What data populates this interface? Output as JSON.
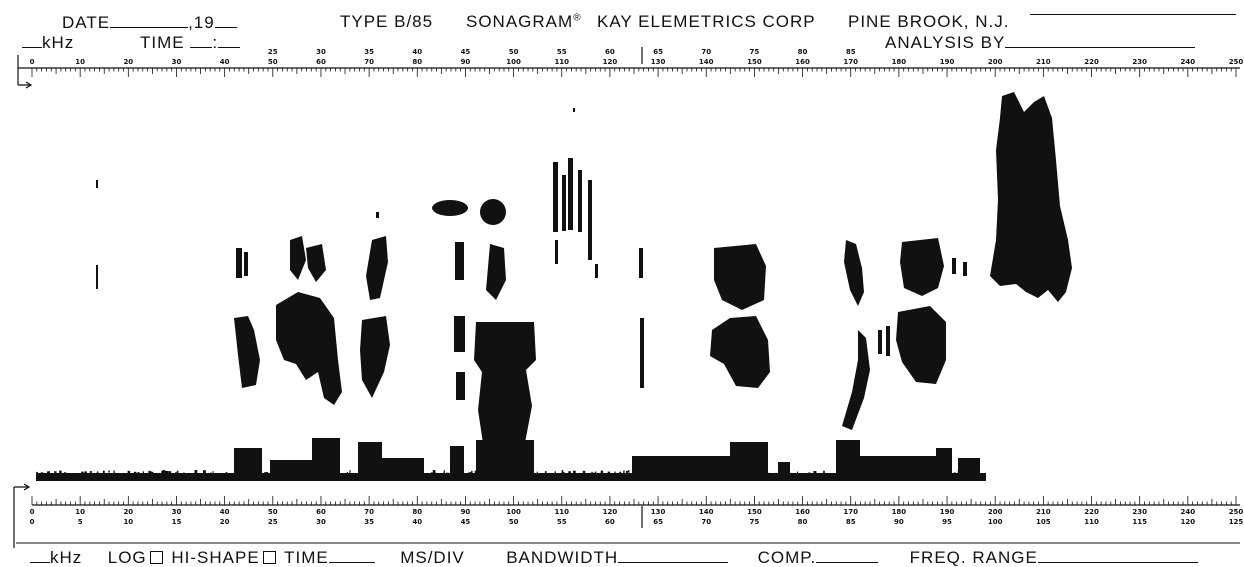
{
  "header": {
    "date_label": "DATE",
    "year_label": ",19",
    "khz_label": "kHz",
    "time_label": "TIME",
    "time_colon": ":",
    "type_label": "TYPE B/85",
    "brand": "SONAGRAM",
    "brand_mark": "®",
    "maker": "KAY ELEMETRICS CORP",
    "location": "PINE BROOK, N.J.",
    "analysis_label": "ANALYSIS BY"
  },
  "top_scale": {
    "main": [
      "0",
      "10",
      "20",
      "30",
      "40",
      "50",
      "60",
      "70",
      "80",
      "90",
      "100",
      "110",
      "120",
      "130",
      "140",
      "150",
      "160",
      "170",
      "180",
      "190",
      "200",
      "210",
      "220",
      "230",
      "240",
      "250"
    ],
    "secondary": [
      "25",
      "30",
      "35",
      "40",
      "45",
      "50",
      "55",
      "60",
      "65",
      "70",
      "75",
      "80",
      "85"
    ]
  },
  "bottom_scale": {
    "main": [
      "0",
      "10",
      "20",
      "30",
      "40",
      "50",
      "60",
      "70",
      "80",
      "90",
      "100",
      "110",
      "120",
      "130",
      "140",
      "150",
      "160",
      "170",
      "180",
      "190",
      "200",
      "210",
      "220",
      "230",
      "240",
      "250"
    ],
    "half": [
      "0",
      "5",
      "10",
      "15",
      "20",
      "25",
      "30",
      "35",
      "40",
      "45",
      "50",
      "55",
      "60",
      "65",
      "70",
      "75",
      "80",
      "85",
      "90",
      "95",
      "100",
      "105",
      "110",
      "115",
      "120",
      "125"
    ]
  },
  "footer": {
    "khz_label": "kHz",
    "log_label": "LOG",
    "hishape_label": "HI-SHAPE",
    "time_label": "TIME",
    "msdiv_label": "MS/DIV",
    "bandwidth_label": "BANDWIDTH",
    "comp_label": "COMP.",
    "freq_range_label": "FREQ. RANGE"
  },
  "colors": {
    "ink": "#111111",
    "paper": "#ffffff"
  }
}
